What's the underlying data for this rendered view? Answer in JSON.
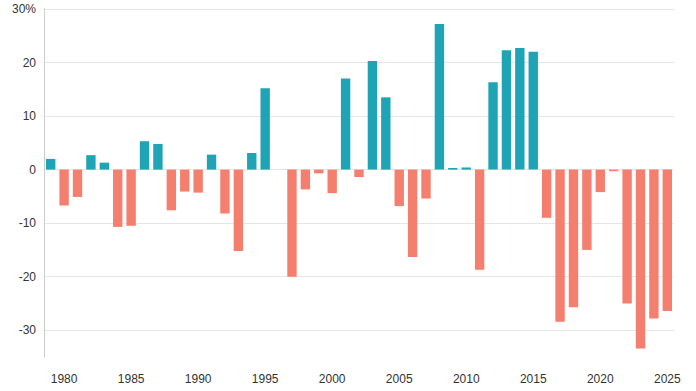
{
  "chart_data": {
    "type": "bar",
    "categories": [
      null,
      "1980",
      null,
      null,
      null,
      null,
      "1985",
      null,
      null,
      null,
      null,
      "1990",
      null,
      null,
      null,
      null,
      "1995",
      null,
      null,
      null,
      null,
      "2000",
      null,
      null,
      null,
      null,
      "2005",
      null,
      null,
      null,
      null,
      "2010",
      null,
      null,
      null,
      null,
      "2015",
      null,
      null,
      null,
      null,
      "2020",
      null,
      null,
      null,
      null,
      "2025"
    ],
    "values": [
      2,
      -6.7,
      -5.1,
      2.7,
      1.3,
      -10.7,
      -10.5,
      5.3,
      4.8,
      -7.6,
      -4.1,
      -4.3,
      2.8,
      -8.2,
      -15.2,
      3.1,
      15.2,
      0,
      -20,
      -3.7,
      -0.7,
      -4.4,
      17,
      -1.4,
      20.3,
      13.5,
      -6.8,
      -16.3,
      -5.4,
      27.2,
      0.3,
      0.4,
      -18.7,
      16.3,
      22.3,
      22.7,
      22,
      -9,
      -28.4,
      -25.7,
      -15,
      -4.2,
      -0.3,
      -25,
      -33.4,
      -27.8,
      -26.4
    ],
    "colors": [
      "#1ea4b5",
      "#f47f6e",
      "#f47f6e",
      "#1ea4b5",
      "#1ea4b5",
      "#f47f6e",
      "#f47f6e",
      "#1ea4b5",
      "#1ea4b5",
      "#f47f6e",
      "#f47f6e",
      "#f47f6e",
      "#1ea4b5",
      "#f47f6e",
      "#f47f6e",
      "#1ea4b5",
      "#1ea4b5",
      "#1ea4b5",
      "#f47f6e",
      "#f47f6e",
      "#f47f6e",
      "#f47f6e",
      "#1ea4b5",
      "#f47f6e",
      "#1ea4b5",
      "#1ea4b5",
      "#f47f6e",
      "#f47f6e",
      "#f47f6e",
      "#1ea4b5",
      "#1ea4b5",
      "#1ea4b5",
      "#f47f6e",
      "#1ea4b5",
      "#1ea4b5",
      "#1ea4b5",
      "#1ea4b5",
      "#f47f6e",
      "#f47f6e",
      "#f47f6e",
      "#f47f6e",
      "#f47f6e",
      "#f47f6e",
      "#f47f6e",
      "#f47f6e",
      "#f47f6e",
      "#f47f6e"
    ],
    "ylim": [
      -35,
      30
    ],
    "yticks": [
      -30,
      -20,
      -10,
      0,
      10,
      20,
      {
        "value": 30,
        "label": "30%"
      }
    ],
    "grid": true
  }
}
